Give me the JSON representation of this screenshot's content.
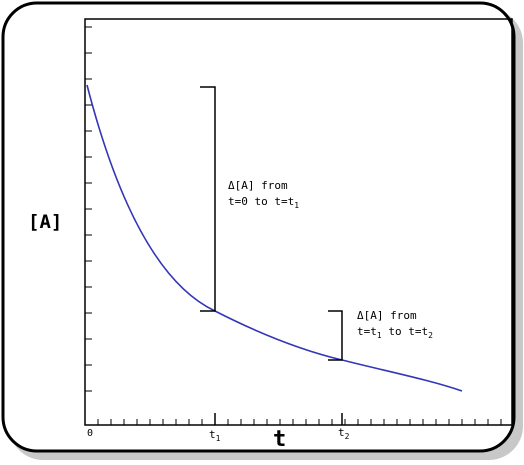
{
  "diagram": {
    "y_axis_label": "[A]",
    "x_axis_label": "t",
    "origin_label": "0",
    "t1_label": {
      "base": "t",
      "sub": "1"
    },
    "t2_label": {
      "base": "t",
      "sub": "2"
    },
    "annotation1": {
      "line1": "Δ[A] from",
      "line2_base": "t=0 to t=t",
      "line2_sub": "1"
    },
    "annotation2": {
      "line1": "Δ[A] from",
      "line2_part1": "t=t",
      "line2_sub1": "1",
      "line2_part2": " to t=t",
      "line2_sub2": "2"
    },
    "colors": {
      "curve": "#3535b8",
      "axis": "#000000",
      "frame": "#000000",
      "shadow": "#c8c8c8",
      "text": "#000000"
    }
  }
}
